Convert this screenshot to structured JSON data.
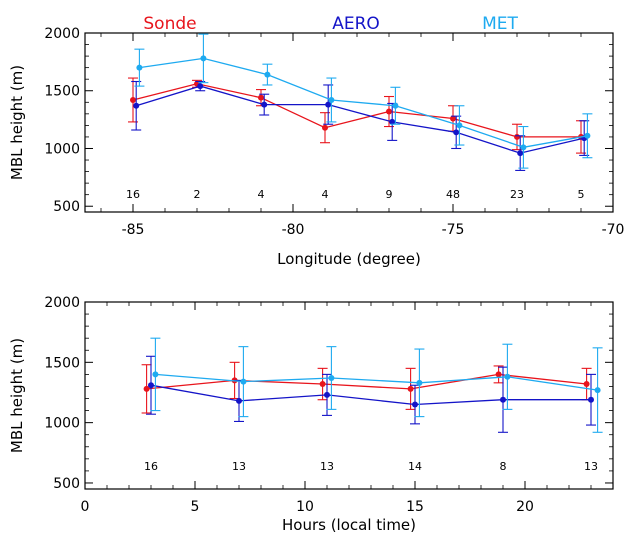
{
  "chart_data": [
    {
      "type": "line",
      "xlabel": "Longitude (degree)",
      "ylabel": "MBL height (m)",
      "xlim": [
        -86.5,
        -70
      ],
      "ylim": [
        450,
        2000
      ],
      "xticks": [
        -85,
        -80,
        -75,
        -70
      ],
      "yticks": [
        500,
        1000,
        1500,
        2000
      ],
      "legend": "top, inline",
      "counts": [
        {
          "x": -85,
          "label": "16"
        },
        {
          "x": -83,
          "label": "2"
        },
        {
          "x": -81,
          "label": "4"
        },
        {
          "x": -79,
          "label": "4"
        },
        {
          "x": -77,
          "label": "9"
        },
        {
          "x": -75,
          "label": "48"
        },
        {
          "x": -73,
          "label": "23"
        },
        {
          "x": -71,
          "label": "5"
        }
      ],
      "series": [
        {
          "name": "Sonde",
          "color": "#e8141c",
          "x": [
            -85,
            -83,
            -81,
            -79,
            -77,
            -75,
            -73,
            -71
          ],
          "y": [
            1420,
            1560,
            1440,
            1180,
            1320,
            1260,
            1100,
            1100
          ],
          "err": [
            190,
            30,
            70,
            130,
            130,
            110,
            110,
            140
          ]
        },
        {
          "name": "AERO",
          "color": "#1414c8",
          "x": [
            -84.9,
            -82.9,
            -80.9,
            -78.9,
            -76.9,
            -74.9,
            -72.9,
            -70.9
          ],
          "y": [
            1370,
            1540,
            1380,
            1380,
            1230,
            1140,
            960,
            1090
          ],
          "err": [
            210,
            40,
            90,
            170,
            160,
            140,
            150,
            150
          ]
        },
        {
          "name": "MET",
          "color": "#1eaaf0",
          "x": [
            -84.8,
            -82.8,
            -80.8,
            -78.8,
            -76.8,
            -74.8,
            -72.8,
            -70.8
          ],
          "y": [
            1700,
            1780,
            1640,
            1420,
            1370,
            1200,
            1010,
            1110
          ],
          "err": [
            160,
            210,
            90,
            190,
            160,
            170,
            180,
            190
          ]
        }
      ]
    },
    {
      "type": "line",
      "xlabel": "Hours (local time)",
      "ylabel": "MBL height (m)",
      "xlim": [
        0,
        24
      ],
      "ylim": [
        450,
        2000
      ],
      "xticks": [
        0,
        5,
        10,
        15,
        20
      ],
      "yticks": [
        500,
        1000,
        1500,
        2000
      ],
      "counts": [
        {
          "x": 3,
          "label": "16"
        },
        {
          "x": 7,
          "label": "13"
        },
        {
          "x": 11,
          "label": "13"
        },
        {
          "x": 15,
          "label": "14"
        },
        {
          "x": 19,
          "label": "8"
        },
        {
          "x": 23,
          "label": "13"
        }
      ],
      "series": [
        {
          "name": "Sonde",
          "color": "#e8141c",
          "x": [
            2.8,
            6.8,
            10.8,
            14.8,
            18.8,
            22.8
          ],
          "y": [
            1280,
            1350,
            1320,
            1280,
            1400,
            1320
          ],
          "err": [
            200,
            150,
            130,
            170,
            70,
            130
          ]
        },
        {
          "name": "AERO",
          "color": "#1414c8",
          "x": [
            3.0,
            7.0,
            11.0,
            15.0,
            19.0,
            23.0
          ],
          "y": [
            1310,
            1180,
            1230,
            1150,
            1190,
            1190
          ],
          "err": [
            240,
            170,
            170,
            160,
            270,
            210
          ]
        },
        {
          "name": "MET",
          "color": "#1eaaf0",
          "x": [
            3.2,
            7.2,
            11.2,
            15.2,
            19.2,
            23.3
          ],
          "y": [
            1400,
            1340,
            1370,
            1330,
            1380,
            1270
          ],
          "err": [
            300,
            290,
            260,
            280,
            270,
            350
          ]
        }
      ]
    }
  ]
}
